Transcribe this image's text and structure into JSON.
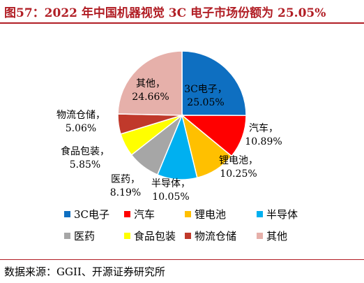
{
  "title": "图57：2022 年中国机器视觉 3C 电子市场份额为 25.05%",
  "source": "数据来源：GGII、开源证券研究所",
  "chart_data": {
    "type": "pie",
    "title": "图57：2022 年中国机器视觉 3C 电子市场份额为 25.05%",
    "slices": [
      {
        "label": "3C电子",
        "pct_label": "25.05%",
        "value": 25.05,
        "color": "#0e6fc1"
      },
      {
        "label": "汽车",
        "pct_label": "10.89%",
        "value": 10.89,
        "color": "#ff0000"
      },
      {
        "label": "锂电池",
        "pct_label": "10.25%",
        "value": 10.25,
        "color": "#ffc000"
      },
      {
        "label": "半导体",
        "pct_label": "10.05%",
        "value": 10.05,
        "color": "#00b0f0"
      },
      {
        "label": "医药",
        "pct_label": "8.19%",
        "value": 8.19,
        "color": "#a6a6a6"
      },
      {
        "label": "食品包装",
        "pct_label": "5.85%",
        "value": 5.85,
        "color": "#ffff00"
      },
      {
        "label": "物流仓储",
        "pct_label": "5.06%",
        "value": 5.06,
        "color": "#c0392b"
      },
      {
        "label": "其他",
        "pct_label": "24.66%",
        "value": 24.66,
        "color": "#e6b0aa"
      }
    ],
    "legend_position": "bottom"
  }
}
